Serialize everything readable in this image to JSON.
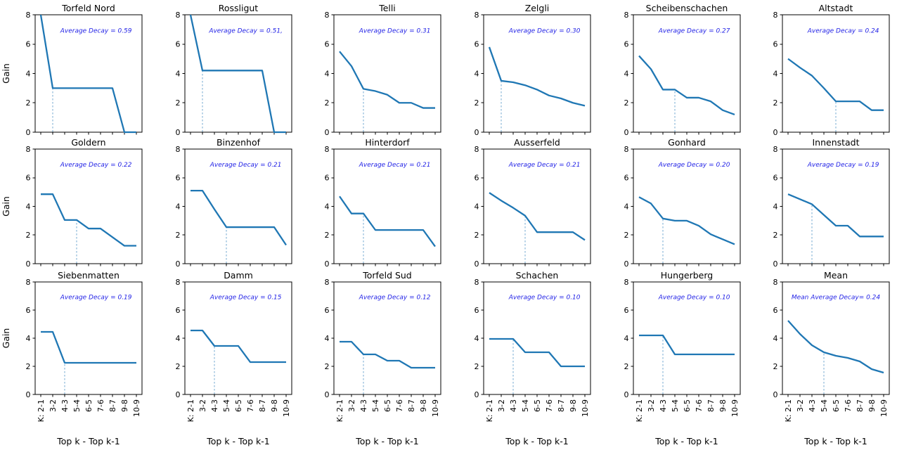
{
  "figure": {
    "ylabel": "Gain",
    "xlabel": "Top k - Top k-1",
    "categories": [
      "K: 2-1",
      "3-2",
      "4-3",
      "5-4",
      "6-5",
      "7-6",
      "8-7",
      "9-8",
      "10-9"
    ],
    "yticks": [
      0,
      2,
      4,
      6,
      8
    ],
    "ylim": [
      0,
      8
    ],
    "line_color": "#1f77b4",
    "dashed_color": "#74a9d0",
    "annotation_color": "#2222e6",
    "axis_color": "#000000"
  },
  "chart_data": [
    {
      "type": "line",
      "title": "Torfeld Nord",
      "annotation": "Average Decay = 0.59",
      "values": [
        8,
        3,
        3,
        3,
        3,
        3,
        3,
        0,
        0
      ],
      "dash_index": 1
    },
    {
      "type": "line",
      "title": "Rossligut",
      "annotation": "Average Decay = 0.51,",
      "values": [
        8,
        4.2,
        4.2,
        4.2,
        4.2,
        4.2,
        4.2,
        0,
        0
      ],
      "dash_index": 1
    },
    {
      "type": "line",
      "title": "Telli",
      "annotation": "Average Decay = 0.31",
      "values": [
        5.5,
        4.5,
        2.95,
        2.8,
        2.55,
        2.0,
        2.0,
        1.65,
        1.65
      ],
      "dash_index": 2
    },
    {
      "type": "line",
      "title": "Zelgli",
      "annotation": "Average Decay = 0.30",
      "values": [
        5.8,
        3.5,
        3.4,
        3.2,
        2.9,
        2.5,
        2.3,
        2.0,
        1.8
      ],
      "dash_index": 1
    },
    {
      "type": "line",
      "title": "Scheibenschachen",
      "annotation": "Average Decay = 0.27",
      "values": [
        5.2,
        4.3,
        2.9,
        2.9,
        2.35,
        2.35,
        2.1,
        1.5,
        1.2
      ],
      "dash_index": 3
    },
    {
      "type": "line",
      "title": "Altstadt",
      "annotation": "Average Decay = 0.24",
      "values": [
        5.0,
        4.4,
        3.85,
        3.0,
        2.1,
        2.1,
        2.1,
        1.5,
        1.5
      ],
      "dash_index": 4
    },
    {
      "type": "line",
      "title": "Goldern",
      "annotation": "Average Decay = 0.22",
      "values": [
        4.85,
        4.85,
        3.05,
        3.05,
        2.45,
        2.45,
        1.85,
        1.25,
        1.25
      ],
      "dash_index": 3
    },
    {
      "type": "line",
      "title": "Binzenhof",
      "annotation": "Average Decay = 0.21",
      "values": [
        5.1,
        5.1,
        3.8,
        2.55,
        2.55,
        2.55,
        2.55,
        2.55,
        1.3
      ],
      "dash_index": 3
    },
    {
      "type": "line",
      "title": "Hinterdorf",
      "annotation": "Average Decay = 0.21",
      "values": [
        4.7,
        3.5,
        3.5,
        2.35,
        2.35,
        2.35,
        2.35,
        2.35,
        1.2
      ],
      "dash_index": 2
    },
    {
      "type": "line",
      "title": "Ausserfeld",
      "annotation": "Average Decay = 0.21",
      "values": [
        4.95,
        4.4,
        3.9,
        3.35,
        2.2,
        2.2,
        2.2,
        2.2,
        1.65
      ],
      "dash_index": 3
    },
    {
      "type": "line",
      "title": "Gonhard",
      "annotation": "Average Decay = 0.20",
      "values": [
        4.65,
        4.2,
        3.15,
        3.0,
        3.0,
        2.65,
        2.05,
        1.7,
        1.35
      ],
      "dash_index": 2
    },
    {
      "type": "line",
      "title": "Innenstadt",
      "annotation": "Average Decay = 0.19",
      "values": [
        4.85,
        4.5,
        4.15,
        3.4,
        2.65,
        2.65,
        1.9,
        1.9,
        1.9
      ],
      "dash_index": 2
    },
    {
      "type": "line",
      "title": "Siebenmatten",
      "annotation": "Average Decay = 0.19",
      "values": [
        4.45,
        4.45,
        2.25,
        2.25,
        2.25,
        2.25,
        2.25,
        2.25,
        2.25
      ],
      "dash_index": 2
    },
    {
      "type": "line",
      "title": "Damm",
      "annotation": "Average Decay = 0.15",
      "values": [
        4.55,
        4.55,
        3.45,
        3.45,
        3.45,
        2.3,
        2.3,
        2.3,
        2.3
      ],
      "dash_index": 2
    },
    {
      "type": "line",
      "title": "Torfeld Sud",
      "annotation": "Average Decay = 0.12",
      "values": [
        3.75,
        3.75,
        2.85,
        2.85,
        2.4,
        2.4,
        1.9,
        1.9,
        1.9
      ],
      "dash_index": 2
    },
    {
      "type": "line",
      "title": "Schachen",
      "annotation": "Average Decay = 0.10",
      "values": [
        3.95,
        3.95,
        3.95,
        3.0,
        3.0,
        3.0,
        2.0,
        2.0,
        2.0
      ],
      "dash_index": 2
    },
    {
      "type": "line",
      "title": "Hungerberg",
      "annotation": "Average Decay = 0.10",
      "values": [
        4.2,
        4.2,
        4.2,
        2.85,
        2.85,
        2.85,
        2.85,
        2.85,
        2.85
      ],
      "dash_index": 2
    },
    {
      "type": "line",
      "title": "Mean",
      "annotation": "Mean Average Decay= 0.24",
      "values": [
        5.25,
        4.3,
        3.5,
        3.0,
        2.75,
        2.6,
        2.35,
        1.8,
        1.55
      ],
      "dash_index": 3
    }
  ]
}
